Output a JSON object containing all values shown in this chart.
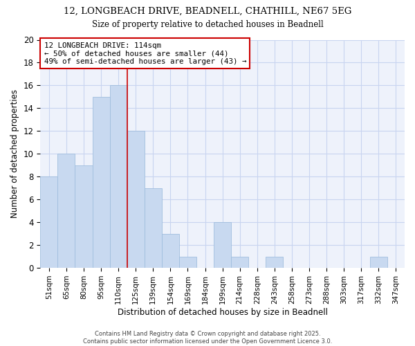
{
  "title1": "12, LONGBEACH DRIVE, BEADNELL, CHATHILL, NE67 5EG",
  "title2": "Size of property relative to detached houses in Beadnell",
  "xlabel": "Distribution of detached houses by size in Beadnell",
  "ylabel": "Number of detached properties",
  "bins": [
    "51sqm",
    "65sqm",
    "80sqm",
    "95sqm",
    "110sqm",
    "125sqm",
    "139sqm",
    "154sqm",
    "169sqm",
    "184sqm",
    "199sqm",
    "214sqm",
    "228sqm",
    "243sqm",
    "258sqm",
    "273sqm",
    "288sqm",
    "303sqm",
    "317sqm",
    "332sqm",
    "347sqm"
  ],
  "values": [
    8,
    10,
    9,
    15,
    16,
    12,
    7,
    3,
    1,
    0,
    4,
    1,
    0,
    1,
    0,
    0,
    0,
    0,
    0,
    1,
    0
  ],
  "bar_color": "#c8d9f0",
  "bar_edge_color": "#a0bede",
  "reference_line_x": 4.5,
  "annotation_text": "12 LONGBEACH DRIVE: 114sqm\n← 50% of detached houses are smaller (44)\n49% of semi-detached houses are larger (43) →",
  "annotation_box_color": "#ffffff",
  "annotation_box_edge_color": "#cc0000",
  "ref_line_color": "#cc0000",
  "background_color": "#ffffff",
  "plot_bg_color": "#eef2fb",
  "grid_color": "#c8d4f0",
  "footer": "Contains HM Land Registry data © Crown copyright and database right 2025.\nContains public sector information licensed under the Open Government Licence 3.0.",
  "ylim": [
    0,
    20
  ],
  "yticks": [
    0,
    2,
    4,
    6,
    8,
    10,
    12,
    14,
    16,
    18,
    20
  ]
}
